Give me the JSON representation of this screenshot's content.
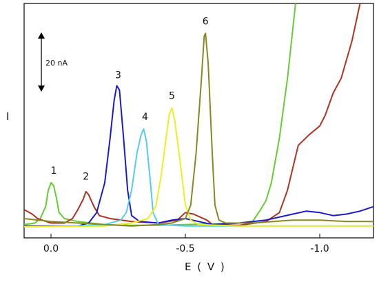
{
  "chart_data": {
    "type": "line",
    "xlabel": "E ( V )",
    "ylabel": "I",
    "xlim": [
      0.1,
      -1.2
    ],
    "x_reversed": true,
    "ylim": [
      0,
      150
    ],
    "xticks": [
      {
        "value": 0.0,
        "label": "0.0"
      },
      {
        "value": -0.5,
        "label": "-0.5"
      },
      {
        "value": -1.0,
        "label": "-1.0"
      }
    ],
    "scale_bar": {
      "label": "20 nA",
      "value": 20
    },
    "grid": false,
    "legend": "none",
    "series": [
      {
        "id": "1",
        "color": "#66cc33",
        "points": [
          [
            0.1,
            2
          ],
          [
            0.06,
            3
          ],
          [
            0.04,
            6
          ],
          [
            0.02,
            14
          ],
          [
            0.01,
            25
          ],
          [
            0.0,
            30
          ],
          [
            -0.01,
            28
          ],
          [
            -0.02,
            20
          ],
          [
            -0.03,
            10
          ],
          [
            -0.05,
            6
          ],
          [
            -0.1,
            4
          ],
          [
            -0.2,
            2
          ],
          [
            -0.3,
            1.5
          ],
          [
            -0.4,
            1.5
          ],
          [
            -0.5,
            2
          ],
          [
            -0.6,
            2.5
          ],
          [
            -0.7,
            3
          ],
          [
            -0.75,
            4
          ],
          [
            -0.78,
            12
          ],
          [
            -0.8,
            18
          ],
          [
            -0.82,
            30
          ],
          [
            -0.85,
            60
          ],
          [
            -0.88,
            100
          ],
          [
            -0.91,
            150
          ]
        ]
      },
      {
        "id": "2",
        "color": "#aa3322",
        "points": [
          [
            0.1,
            12
          ],
          [
            0.07,
            9
          ],
          [
            0.05,
            6
          ],
          [
            0.0,
            3
          ],
          [
            -0.05,
            3
          ],
          [
            -0.08,
            6
          ],
          [
            -0.1,
            12
          ],
          [
            -0.12,
            19
          ],
          [
            -0.13,
            24
          ],
          [
            -0.14,
            22
          ],
          [
            -0.16,
            14
          ],
          [
            -0.18,
            8
          ],
          [
            -0.22,
            6
          ],
          [
            -0.3,
            4
          ],
          [
            -0.4,
            3
          ],
          [
            -0.47,
            5
          ],
          [
            -0.5,
            10
          ],
          [
            -0.53,
            9
          ],
          [
            -0.58,
            5
          ],
          [
            -0.6,
            2
          ],
          [
            -0.7,
            1.5
          ],
          [
            -0.8,
            4
          ],
          [
            -0.85,
            10
          ],
          [
            -0.88,
            25
          ],
          [
            -0.92,
            55
          ],
          [
            -0.96,
            62
          ],
          [
            -1.0,
            68
          ],
          [
            -1.02,
            75
          ],
          [
            -1.05,
            90
          ],
          [
            -1.08,
            100
          ],
          [
            -1.12,
            125
          ],
          [
            -1.15,
            150
          ]
        ]
      },
      {
        "id": "3",
        "color": "#1a1acc",
        "points": [
          [
            0.1,
            1
          ],
          [
            -0.1,
            1
          ],
          [
            -0.14,
            3
          ],
          [
            -0.17,
            10
          ],
          [
            -0.2,
            30
          ],
          [
            -0.22,
            60
          ],
          [
            -0.235,
            85
          ],
          [
            -0.245,
            95
          ],
          [
            -0.255,
            92
          ],
          [
            -0.27,
            60
          ],
          [
            -0.285,
            25
          ],
          [
            -0.3,
            8
          ],
          [
            -0.33,
            4
          ],
          [
            -0.4,
            3
          ],
          [
            -0.45,
            5
          ],
          [
            -0.5,
            6
          ],
          [
            -0.55,
            4
          ],
          [
            -0.6,
            2
          ],
          [
            -0.7,
            3
          ],
          [
            -0.8,
            5
          ],
          [
            -0.9,
            9
          ],
          [
            -0.95,
            11
          ],
          [
            -1.0,
            10
          ],
          [
            -1.05,
            8
          ],
          [
            -1.1,
            9
          ],
          [
            -1.15,
            11
          ],
          [
            -1.2,
            14
          ]
        ]
      },
      {
        "id": "4",
        "color": "#55ccee",
        "points": [
          [
            0.1,
            0.5
          ],
          [
            -0.1,
            1
          ],
          [
            -0.2,
            2
          ],
          [
            -0.26,
            5
          ],
          [
            -0.28,
            10
          ],
          [
            -0.3,
            25
          ],
          [
            -0.32,
            50
          ],
          [
            -0.335,
            62
          ],
          [
            -0.345,
            66
          ],
          [
            -0.355,
            58
          ],
          [
            -0.37,
            30
          ],
          [
            -0.38,
            10
          ],
          [
            -0.4,
            2
          ],
          [
            -0.5,
            1
          ],
          [
            -0.8,
            1
          ],
          [
            -1.2,
            1
          ]
        ]
      },
      {
        "id": "5",
        "color": "#eeee22",
        "points": [
          [
            0.1,
            0.5
          ],
          [
            -0.2,
            1
          ],
          [
            -0.3,
            3
          ],
          [
            -0.36,
            6
          ],
          [
            -0.39,
            14
          ],
          [
            -0.41,
            35
          ],
          [
            -0.43,
            62
          ],
          [
            -0.44,
            76
          ],
          [
            -0.45,
            80
          ],
          [
            -0.46,
            72
          ],
          [
            -0.48,
            45
          ],
          [
            -0.5,
            15
          ],
          [
            -0.52,
            5
          ],
          [
            -0.55,
            2
          ],
          [
            -0.7,
            1
          ],
          [
            -1.0,
            1
          ],
          [
            -1.2,
            1
          ]
        ]
      },
      {
        "id": "6",
        "color": "#888822",
        "points": [
          [
            0.1,
            6
          ],
          [
            0.0,
            4
          ],
          [
            -0.1,
            3
          ],
          [
            -0.2,
            2
          ],
          [
            -0.3,
            1
          ],
          [
            -0.4,
            2
          ],
          [
            -0.45,
            3
          ],
          [
            -0.5,
            6
          ],
          [
            -0.52,
            15
          ],
          [
            -0.54,
            50
          ],
          [
            -0.56,
            100
          ],
          [
            -0.57,
            128
          ],
          [
            -0.575,
            130
          ],
          [
            -0.585,
            110
          ],
          [
            -0.6,
            50
          ],
          [
            -0.61,
            15
          ],
          [
            -0.625,
            5
          ],
          [
            -0.65,
            3
          ],
          [
            -0.75,
            3
          ],
          [
            -0.9,
            5
          ],
          [
            -1.0,
            5
          ],
          [
            -1.1,
            4
          ],
          [
            -1.2,
            4
          ]
        ]
      }
    ],
    "labels": [
      {
        "text": "1",
        "x": -0.01,
        "y": 36
      },
      {
        "text": "2",
        "x": -0.13,
        "y": 32
      },
      {
        "text": "3",
        "x": -0.25,
        "y": 100
      },
      {
        "text": "4",
        "x": -0.35,
        "y": 72
      },
      {
        "text": "5",
        "x": -0.45,
        "y": 86
      },
      {
        "text": "6",
        "x": -0.575,
        "y": 136
      }
    ]
  }
}
